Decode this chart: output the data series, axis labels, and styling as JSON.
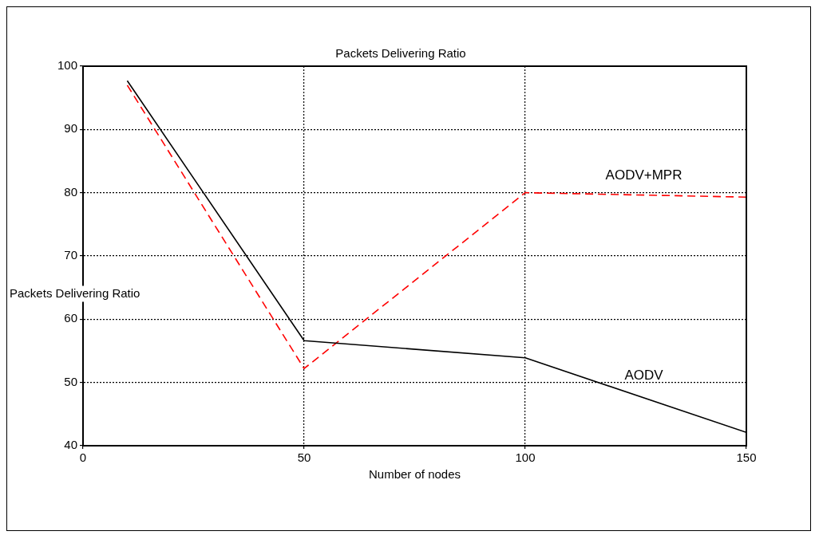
{
  "chart_data": {
    "type": "line",
    "title": "Packets Delivering Ratio",
    "xlabel": "Number of nodes",
    "ylabel": "Packets Delivering Ratio",
    "x": [
      10,
      50,
      100,
      150
    ],
    "series": [
      {
        "name": "AODV",
        "color": "#000000",
        "values": [
          97.7,
          56.6,
          53.9,
          42.1
        ],
        "line_style": "solid"
      },
      {
        "name": "AODV+MPR",
        "color": "#ff0000",
        "values": [
          97.0,
          52.2,
          80.0,
          79.3
        ],
        "line_style": "dashed"
      }
    ],
    "xlim": [
      0,
      150
    ],
    "xticks": [
      0,
      50,
      100,
      150
    ],
    "ylim": [
      40,
      100
    ],
    "yticks": [
      40,
      50,
      60,
      70,
      80,
      90,
      100
    ],
    "grid": true,
    "legend": false,
    "marker": "none"
  }
}
